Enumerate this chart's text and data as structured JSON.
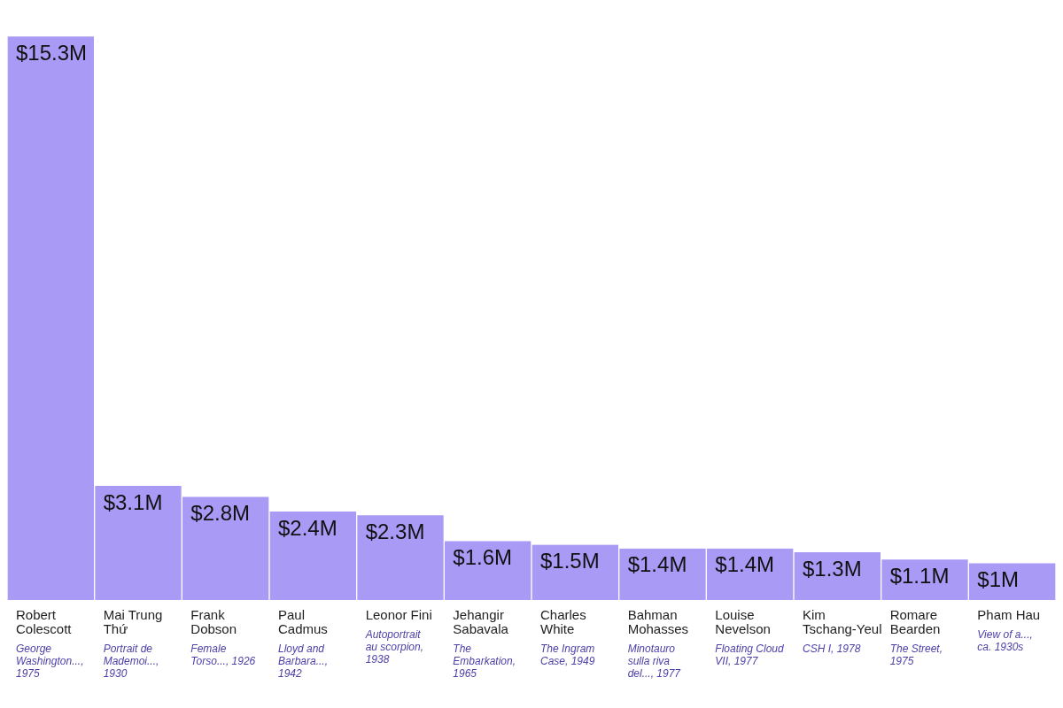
{
  "chart_data": {
    "type": "bar",
    "categories": [
      "Robert Colescott",
      "Mai Trung Thứ",
      "Frank Dobson",
      "Paul Cadmus",
      "Leonor Fini",
      "Jehangir Sabavala",
      "Charles White",
      "Bahman Mohasses",
      "Louise Nevelson",
      "Kim Tschang-Yeul",
      "Romare Bearden",
      "Pham Hau"
    ],
    "values": [
      15.3,
      3.1,
      2.8,
      2.4,
      2.3,
      1.6,
      1.5,
      1.4,
      1.4,
      1.3,
      1.1,
      1
    ],
    "value_labels": [
      "$15.3M",
      "$3.1M",
      "$2.8M",
      "$2.4M",
      "$2.3M",
      "$1.6M",
      "$1.5M",
      "$1.4M",
      "$1.4M",
      "$1.3M",
      "$1.1M",
      "$1M"
    ],
    "color": "#a89af5",
    "annotations": [
      "George Washington..., 1975",
      "Portrait de Mademoi..., 1930",
      "Female Torso..., 1926",
      "Lloyd and Barbara..., 1942",
      "Autoportrait au scorpion, 1938",
      "The Embarkation, 1965",
      "The Ingram Case, 1949",
      "Minotauro sulla riva del..., 1977",
      "Floating Cloud VII, 1977",
      "CSH I, 1978",
      "The Street, 1975",
      "View of a..., ca. 1930s"
    ],
    "legend": false
  }
}
